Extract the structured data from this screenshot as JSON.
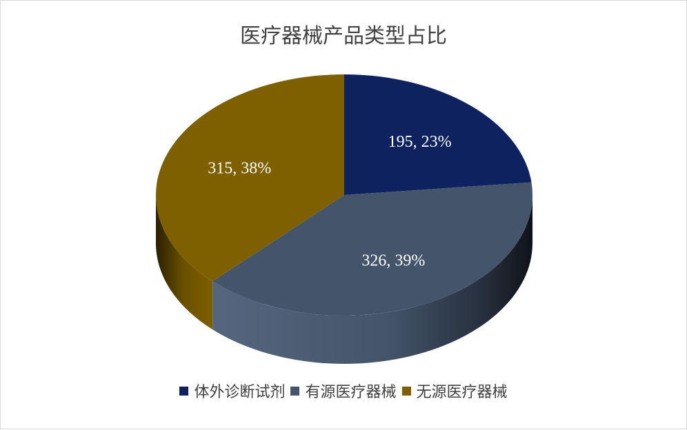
{
  "chart_data": {
    "type": "pie",
    "title": "医疗器械产品类型占比",
    "categories": [
      "体外诊断试剂",
      "有源医疗器械",
      "无源医疗器械"
    ],
    "values": [
      195,
      326,
      315
    ],
    "percents": [
      "23%",
      "39%",
      "38%"
    ],
    "data_labels": [
      "195, 23%",
      "326, 39%",
      "315, 38%"
    ],
    "colors": [
      "#0e2260",
      "#44546a",
      "#7f6000"
    ],
    "legend_position": "bottom",
    "style": "3d"
  }
}
